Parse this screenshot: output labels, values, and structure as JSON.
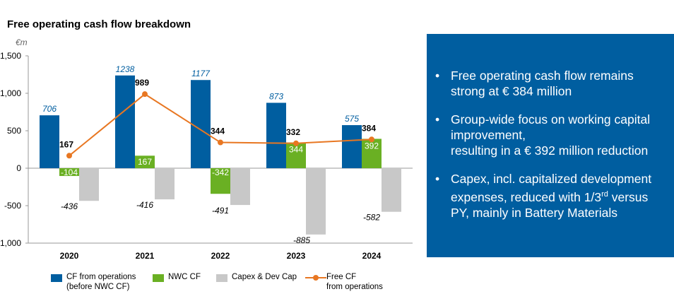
{
  "chart_data": {
    "type": "bar",
    "title": "Free operating cash flow breakdown",
    "ylabel": "€m",
    "ylim": [
      -1000,
      1500
    ],
    "yticks": [
      -1000,
      -500,
      0,
      500,
      1000,
      1500
    ],
    "ytick_labels": [
      "-1,000",
      "-500",
      "0",
      "500",
      "1,000",
      "1,500"
    ],
    "categories": [
      "2020",
      "2021",
      "2022",
      "2023",
      "2024"
    ],
    "series": [
      {
        "name": "CF from operations (before NWC CF)",
        "name_lines": [
          "CF from operations",
          "(before NWC CF)"
        ],
        "type": "bar",
        "color": "#005ea0",
        "values": [
          706,
          1238,
          1177,
          873,
          575
        ]
      },
      {
        "name": "NWC CF",
        "type": "bar",
        "color": "#6ab023",
        "values": [
          -104,
          167,
          -342,
          344,
          392
        ]
      },
      {
        "name": "Capex & Dev Cap",
        "type": "bar",
        "color": "#c8c8c8",
        "values": [
          -436,
          -416,
          -491,
          -885,
          -582
        ]
      },
      {
        "name": "Free CF from operations",
        "name_lines": [
          "Free CF",
          "from operations"
        ],
        "type": "line",
        "color": "#e87722",
        "values": [
          167,
          989,
          344,
          332,
          384
        ]
      }
    ],
    "grid": false,
    "legend_position": "bottom"
  },
  "info": {
    "bullets": [
      {
        "lines": [
          "Free operating cash flow remains",
          "strong at € 384 million"
        ]
      },
      {
        "lines": [
          "Group-wide focus on working capital",
          "improvement,",
          "resulting in a € 392 million reduction"
        ]
      },
      {
        "lines": [
          "Capex, incl. capitalized development",
          "expenses, reduced with 1/3",
          "rd",
          " versus",
          "PY, mainly in Battery Materials"
        ]
      }
    ]
  }
}
